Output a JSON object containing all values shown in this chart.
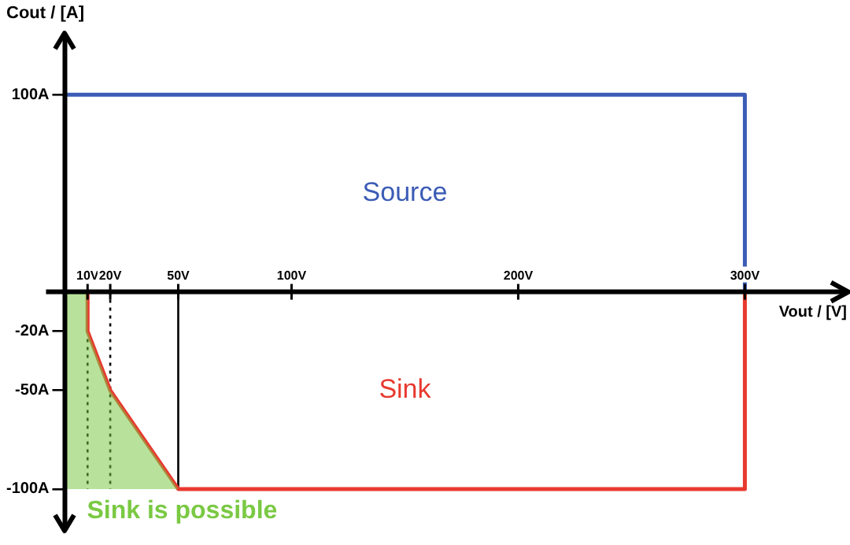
{
  "chart_data": {
    "type": "line",
    "xlabel": "Vout / [V]",
    "ylabel": "Cout / [A]",
    "xlim": [
      0,
      345
    ],
    "ylim": [
      -122,
      132
    ],
    "xticks": [
      {
        "value": 10,
        "label": "10V"
      },
      {
        "value": 20,
        "label": "20V"
      },
      {
        "value": 50,
        "label": "50V"
      },
      {
        "value": 100,
        "label": "100V"
      },
      {
        "value": 200,
        "label": "200V"
      },
      {
        "value": 300,
        "label": "300V"
      }
    ],
    "yticks": [
      {
        "value": 100,
        "label": "100A"
      },
      {
        "value": -20,
        "label": "-20A"
      },
      {
        "value": -50,
        "label": "-50A"
      },
      {
        "value": -100,
        "label": "-100A"
      }
    ],
    "series": [
      {
        "name": "Sink is possible",
        "type": "area",
        "color": "#7ac943",
        "x": [
          0,
          10,
          10,
          20,
          50,
          0,
          0
        ],
        "values": [
          0,
          0,
          -20,
          -50,
          -100,
          -100,
          0
        ]
      },
      {
        "name": "Source",
        "color": "#3b5bb5",
        "x": [
          0,
          300,
          300
        ],
        "values": [
          100,
          100,
          0
        ]
      },
      {
        "name": "Sink",
        "color": "#e8392f",
        "x": [
          0,
          10,
          10,
          20,
          50,
          300,
          300
        ],
        "values": [
          0,
          0,
          -20,
          -50,
          -100,
          -100,
          0
        ]
      }
    ],
    "ref_lines": [
      {
        "axis": "x",
        "value": 10,
        "line_style": "dotted"
      },
      {
        "axis": "x",
        "value": 20,
        "line_style": "dotted"
      },
      {
        "axis": "x",
        "value": 50,
        "line_style": "solid"
      }
    ],
    "marker": "none",
    "legend": false,
    "grid": false
  }
}
